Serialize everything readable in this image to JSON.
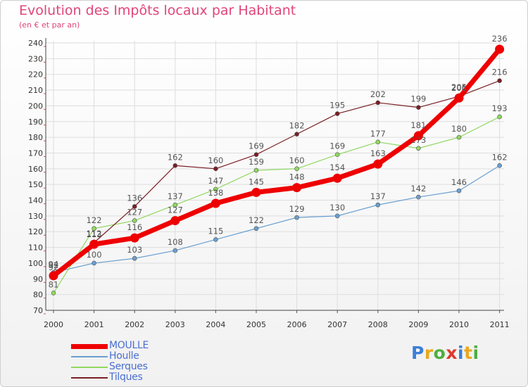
{
  "chart_data": {
    "type": "line",
    "title": "Evolution des Impôts locaux par Habitant",
    "subtitle": "(en € et par an)",
    "xlabel": "",
    "ylabel": "",
    "ylim": [
      70,
      240
    ],
    "yticks": [
      70,
      80,
      90,
      100,
      110,
      120,
      130,
      140,
      150,
      160,
      170,
      180,
      190,
      200,
      210,
      220,
      230,
      240
    ],
    "x": [
      "2000",
      "2001",
      "2002",
      "2003",
      "2004",
      "2005",
      "2006",
      "2007",
      "2008",
      "2009",
      "2010",
      "2011"
    ],
    "grid": true,
    "legend_position": "bottom-left",
    "series": [
      {
        "name": "MOULLE",
        "values": [
          92,
          112,
          116,
          127,
          138,
          145,
          148,
          154,
          163,
          181,
          205,
          236
        ],
        "color": "#ee0000"
      },
      {
        "name": "Houlle",
        "values": [
          94,
          100,
          103,
          108,
          115,
          122,
          129,
          130,
          137,
          142,
          146,
          162
        ],
        "color": "#6a9fd0"
      },
      {
        "name": "Serques",
        "values": [
          81,
          122,
          127,
          137,
          147,
          159,
          160,
          169,
          177,
          173,
          180,
          193
        ],
        "color": "#90d860"
      },
      {
        "name": "Tilques",
        "values": [
          92,
          113,
          136,
          162,
          160,
          169,
          182,
          195,
          202,
          199,
          206,
          216
        ],
        "color": "#7a1e24"
      }
    ]
  },
  "logo": {
    "letters": [
      "P",
      "r",
      "o",
      "x",
      "i",
      "t",
      "i"
    ],
    "colors": [
      "#3b7fd8",
      "#e9a81f",
      "#4caf3f",
      "#e03a2a",
      "#3b7fd8",
      "#e9a81f",
      "#4caf3f"
    ]
  }
}
